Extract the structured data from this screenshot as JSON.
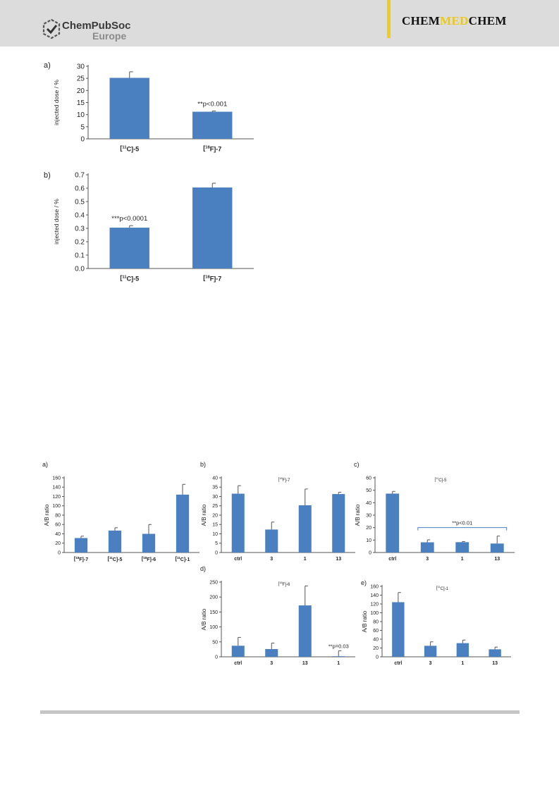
{
  "header": {
    "publisher_line1": "ChemPubSoc",
    "publisher_line2": "Europe",
    "journal_left": "CHEM",
    "journal_mid": "MED",
    "journal_right": "CHEM"
  },
  "colors": {
    "bar": "#4a7fc0",
    "axis": "#555555"
  },
  "chart_data": [
    {
      "id": "fig1a",
      "panel": "a)",
      "type": "bar",
      "categories": [
        "[11C]-5",
        "[18F]-7"
      ],
      "values": [
        25.2,
        11.2
      ],
      "errors": [
        2.5,
        0.3
      ],
      "ylabel": "injected dose / %",
      "ylim": [
        0,
        30
      ],
      "yticks": [
        0,
        5,
        10,
        15,
        20,
        25,
        30
      ],
      "ytick_labels": [
        "0",
        "5",
        "10",
        "15",
        "20",
        "25",
        "30"
      ],
      "annotations": [
        {
          "bar": 1,
          "text": "**p<0.001"
        }
      ]
    },
    {
      "id": "fig1b",
      "panel": "b)",
      "type": "bar",
      "categories": [
        "[11C]-5",
        "[18F]-7"
      ],
      "values": [
        0.305,
        0.605
      ],
      "errors": [
        0.015,
        0.032
      ],
      "ylabel": "injected dose / %",
      "ylim": [
        0,
        0.7
      ],
      "yticks": [
        0,
        0.1,
        0.2,
        0.3,
        0.4,
        0.5,
        0.6,
        0.7
      ],
      "ytick_labels": [
        "0.0",
        "0.1",
        "0.2",
        "0.3",
        "0.4",
        "0.5",
        "0.6",
        "0.7"
      ],
      "annotations": [
        {
          "bar": 0,
          "text": "***p<0.0001"
        }
      ]
    },
    {
      "id": "fig2a",
      "panel": "a)",
      "type": "bar",
      "categories": [
        "[18F]-7",
        "[11C]-5",
        "[18F]-6",
        "[11C]-1"
      ],
      "values": [
        31,
        47,
        40,
        124
      ],
      "errors": [
        4,
        6,
        20,
        22
      ],
      "ylabel": "A/B ratio",
      "ylim": [
        0,
        160
      ],
      "yticks": [
        0,
        20,
        40,
        60,
        80,
        100,
        120,
        140,
        160
      ],
      "ytick_labels": [
        "0",
        "20",
        "40",
        "60",
        "80",
        "100",
        "120",
        "140",
        "160"
      ],
      "annotations": []
    },
    {
      "id": "fig2b",
      "panel": "b)",
      "type": "bar",
      "title": "[18F]-7",
      "categories": [
        "ctrl",
        "3",
        "1",
        "13"
      ],
      "values": [
        31.5,
        12.3,
        25.3,
        31.3
      ],
      "errors": [
        4.3,
        4.0,
        8.7,
        1.0
      ],
      "ylabel": "A/B ratio",
      "ylim": [
        0,
        40
      ],
      "yticks": [
        0,
        5,
        10,
        15,
        20,
        25,
        30,
        35,
        40
      ],
      "ytick_labels": [
        "0",
        "5",
        "10",
        "15",
        "20",
        "25",
        "30",
        "35",
        "40"
      ],
      "annotations": []
    },
    {
      "id": "fig2c",
      "panel": "c)",
      "type": "bar",
      "title": "[11C]-5",
      "categories": [
        "ctrl",
        "3",
        "1",
        "13"
      ],
      "values": [
        47.3,
        8.2,
        8.3,
        7.2
      ],
      "errors": [
        1.8,
        2.0,
        0.5,
        6.0
      ],
      "ylabel": "A/B ratio",
      "ylim": [
        0,
        60
      ],
      "yticks": [
        0,
        10,
        20,
        30,
        40,
        50,
        60
      ],
      "ytick_labels": [
        "0",
        "10",
        "20",
        "30",
        "40",
        "50",
        "60"
      ],
      "annotations": [
        {
          "bracket": [
            1,
            3
          ],
          "text": "**p<0.01"
        }
      ]
    },
    {
      "id": "fig2d",
      "panel": "d)",
      "type": "bar",
      "title": "[18F]-6",
      "categories": [
        "ctrl",
        "3",
        "13",
        "1"
      ],
      "values": [
        37,
        26,
        172,
        2
      ],
      "errors": [
        28,
        20,
        65,
        18
      ],
      "ylabel": "A/B ratio",
      "ylim": [
        0,
        250
      ],
      "yticks": [
        0,
        50,
        100,
        150,
        200,
        250
      ],
      "ytick_labels": [
        "0",
        "50",
        "100",
        "150",
        "200",
        "250"
      ],
      "annotations": [
        {
          "bar": 3,
          "text": "**p=0.03"
        }
      ]
    },
    {
      "id": "fig2e",
      "panel": "e)",
      "type": "bar",
      "title": "[11C]-1",
      "categories": [
        "ctrl",
        "3",
        "1",
        "13"
      ],
      "values": [
        124,
        25,
        31,
        17
      ],
      "errors": [
        22,
        9,
        7,
        5
      ],
      "ylabel": "A/B ratio",
      "ylim": [
        0,
        160
      ],
      "yticks": [
        0,
        20,
        40,
        60,
        80,
        100,
        120,
        140,
        160
      ],
      "ytick_labels": [
        "0",
        "20",
        "40",
        "60",
        "80",
        "100",
        "120",
        "140",
        "160"
      ],
      "annotations": []
    }
  ]
}
